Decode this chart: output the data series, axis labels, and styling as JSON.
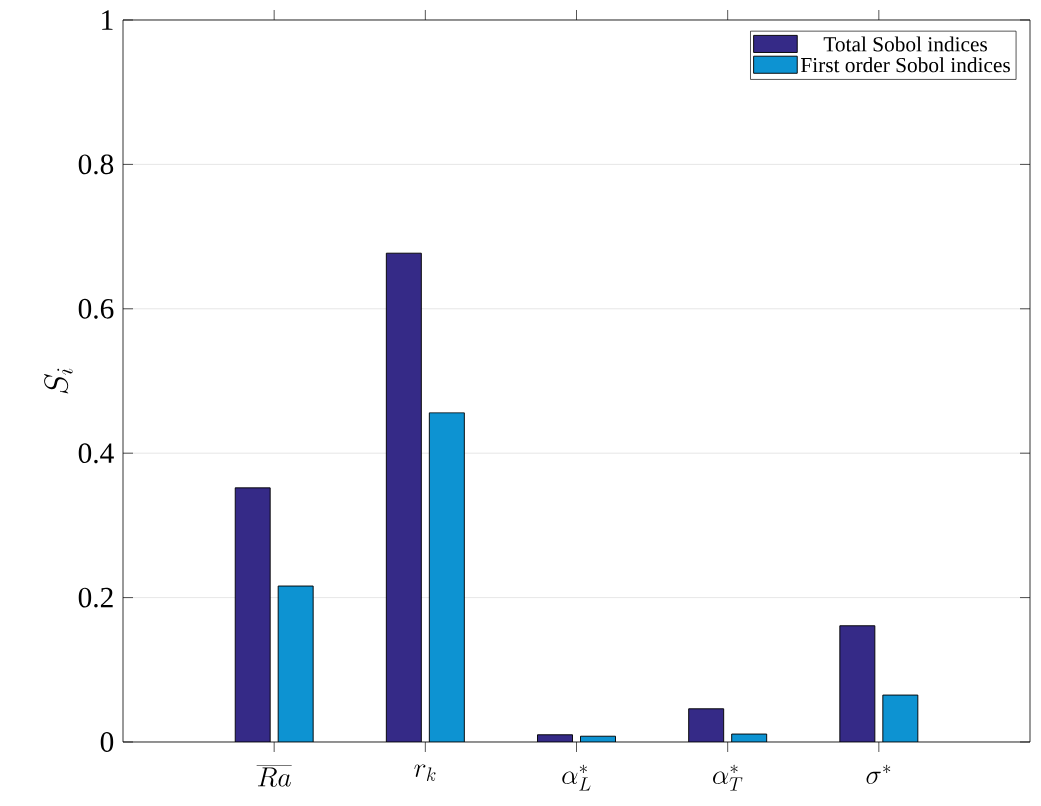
{
  "chart_data": {
    "type": "bar",
    "ylabel": "S_i",
    "categories": [
      "\\overline{Ra}",
      "r_k",
      "\\alpha_L^*",
      "\\alpha_T^*",
      "\\sigma^*"
    ],
    "series": [
      {
        "name": "Total Sobol indices",
        "color": "#352a87",
        "values": [
          0.352,
          0.677,
          0.01,
          0.046,
          0.161
        ]
      },
      {
        "name": "First order Sobol indices",
        "color": "#0d93d2",
        "values": [
          0.216,
          0.456,
          0.008,
          0.011,
          0.065
        ]
      }
    ],
    "ylim": [
      0,
      1
    ],
    "yticks": [
      0,
      0.2,
      0.4,
      0.6,
      0.8,
      1
    ],
    "grid": "y",
    "legend": "top right"
  }
}
